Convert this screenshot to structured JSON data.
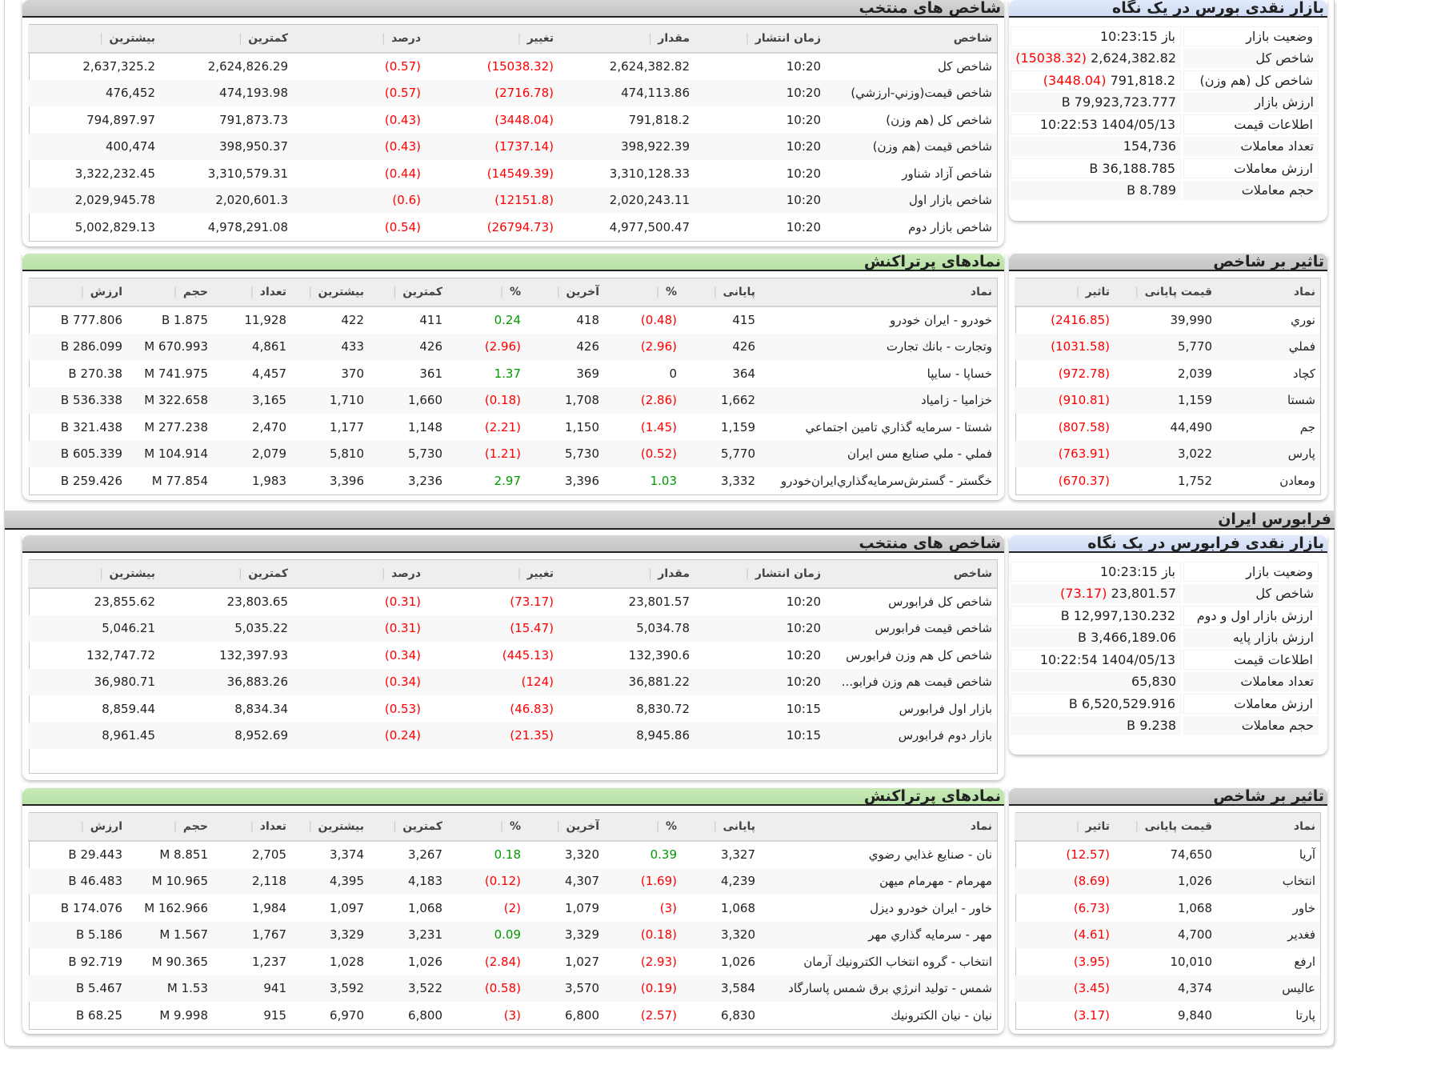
{
  "colors": {
    "negative": "#ff0000",
    "positive": "#009900",
    "indices_header": "#c8c8c8",
    "traded_header": "#c0e6ae",
    "overview_header": "#d8e2f6"
  },
  "bourse": {
    "indices": {
      "title": "شاخص های منتخب",
      "headers": [
        "شاخص",
        "زمان انتشار",
        "مقدار",
        "تغییر",
        "درصد",
        "کمترین",
        "بیشترین"
      ],
      "rows": [
        [
          "شاخص کل",
          "10:20",
          "2,624,382.82",
          "(15038.32)",
          "(0.57)",
          "2,624,826.29",
          "2,637,325.2"
        ],
        [
          "شاخص قيمت(وزني-ارزشي)",
          "10:20",
          "474,113.86",
          "(2716.78)",
          "(0.57)",
          "474,193.98",
          "476,452"
        ],
        [
          "شاخص کل (هم وزن)",
          "10:20",
          "791,818.2",
          "(3448.04)",
          "(0.43)",
          "791,873.73",
          "794,897.97"
        ],
        [
          "شاخص قیمت (هم وزن)",
          "10:20",
          "398,922.39",
          "(1737.14)",
          "(0.43)",
          "398,950.37",
          "400,474"
        ],
        [
          "شاخص آزاد شناور",
          "10:20",
          "3,310,128.33",
          "(14549.39)",
          "(0.44)",
          "3,310,579.31",
          "3,322,232.45"
        ],
        [
          "شاخص بازار اول",
          "10:20",
          "2,020,243.11",
          "(12151.8)",
          "(0.6)",
          "2,020,601.3",
          "2,029,945.78"
        ],
        [
          "شاخص بازار دوم",
          "10:20",
          "4,977,500.47",
          "(26794.73)",
          "(0.54)",
          "4,978,291.08",
          "5,002,829.13"
        ]
      ]
    },
    "overview": {
      "title": "بازار نقدی بورس در یک نگاه",
      "rows": [
        {
          "label": "وضعیت بازار",
          "value": "باز 10:23:15",
          "change": ""
        },
        {
          "label": "شاخص کل",
          "value": "2,624,382.82",
          "change": "(15038.32)"
        },
        {
          "label": "شاخص کل (هم وزن)",
          "value": "791,818.2",
          "change": "(3448.04)"
        },
        {
          "label": "ارزش بازار",
          "value": "79,923,723.777 B",
          "change": ""
        },
        {
          "label": "اطلاعات قیمت",
          "value": "1404/05/13 10:22:53",
          "change": ""
        },
        {
          "label": "تعداد معاملات",
          "value": "154,736",
          "change": ""
        },
        {
          "label": "ارزش معاملات",
          "value": "36,188.785 B",
          "change": ""
        },
        {
          "label": "حجم معاملات",
          "value": "8.789 B",
          "change": ""
        }
      ]
    },
    "traded": {
      "title": "نمادهای پرتراکنش",
      "headers": [
        "نماد",
        "پایانی",
        "%",
        "آخرین",
        "%",
        "کمترین",
        "بیشترین",
        "تعداد",
        "حجم",
        "ارزش"
      ],
      "rows": [
        [
          "خودرو - ايران‌ خودرو",
          "415",
          "(0.48)",
          "418",
          "0.24",
          "411",
          "422",
          "11,928",
          "1.875 B",
          "777.806 B"
        ],
        [
          "وتجارت - بانك تجارت",
          "426",
          "(2.96)",
          "426",
          "(2.96)",
          "426",
          "433",
          "4,861",
          "670.993 M",
          "286.099 B"
        ],
        [
          "خساپا - سايپا",
          "364",
          "0",
          "369",
          "1.37",
          "361",
          "370",
          "4,457",
          "741.975 M",
          "270.38 B"
        ],
        [
          "خزامیا - زامیاد",
          "1,662",
          "(2.86)",
          "1,708",
          "(0.18)",
          "1,660",
          "1,710",
          "3,165",
          "322.658 M",
          "536.338 B"
        ],
        [
          "شستا - سرمايه گذاري تامين اجتماعي",
          "1,159",
          "(1.45)",
          "1,150",
          "(2.21)",
          "1,148",
          "1,177",
          "2,470",
          "277.238 M",
          "321.438 B"
        ],
        [
          "فملي - ملي‌ صنايع‌ مس‌ ايران‌",
          "5,770",
          "(0.52)",
          "5,730",
          "(1.21)",
          "5,730",
          "5,810",
          "2,079",
          "104.914 M",
          "605.339 B"
        ],
        [
          "خگستر - گسترش‌سرمايه‌گذاري‌ايران‌خودرو",
          "3,332",
          "1.03",
          "3,396",
          "2.97",
          "3,236",
          "3,396",
          "1,983",
          "77.854 M",
          "259.426 B"
        ]
      ]
    },
    "impact": {
      "title": "تاثیر بر شاخص",
      "headers": [
        "نماد",
        "قیمت پایانی",
        "تاثیر"
      ],
      "rows": [
        [
          "نوري",
          "39,990",
          "(2416.85)"
        ],
        [
          "فملي",
          "5,770",
          "(1031.58)"
        ],
        [
          "كچاد",
          "2,039",
          "(972.78)"
        ],
        [
          "شستا",
          "1,159",
          "(910.81)"
        ],
        [
          "جم",
          "44,490",
          "(807.58)"
        ],
        [
          "پارس",
          "3,022",
          "(763.91)"
        ],
        [
          "ومعادن",
          "1,752",
          "(670.37)"
        ]
      ]
    }
  },
  "farabourse_band": "فرابورس ایران",
  "farabourse": {
    "indices": {
      "title": "شاخص های منتخب",
      "headers": [
        "شاخص",
        "زمان انتشار",
        "مقدار",
        "تغییر",
        "درصد",
        "کمترین",
        "بیشترین"
      ],
      "rows": [
        [
          "شاخص کل فرابورس",
          "10:20",
          "23,801.57",
          "(73.17)",
          "(0.31)",
          "23,803.65",
          "23,855.62"
        ],
        [
          "شاخص قیمت فرابورس",
          "10:20",
          "5,034.78",
          "(15.47)",
          "(0.31)",
          "5,035.22",
          "5,046.21"
        ],
        [
          "شاخص کل هم وزن فرابورس",
          "10:20",
          "132,390.6",
          "(445.13)",
          "(0.34)",
          "132,397.93",
          "132,747.72"
        ],
        [
          "شاخص قیمت هم وزن فرابو...",
          "10:20",
          "36,881.22",
          "(124)",
          "(0.34)",
          "36,883.26",
          "36,980.71"
        ],
        [
          "بازار اول فرابورس",
          "10:15",
          "8,830.72",
          "(46.83)",
          "(0.53)",
          "8,834.34",
          "8,859.44"
        ],
        [
          "بازار دوم فرابورس",
          "10:15",
          "8,945.86",
          "(21.35)",
          "(0.24)",
          "8,952.69",
          "8,961.45"
        ]
      ]
    },
    "overview": {
      "title": "بازار نقدی فرابورس در یک نگاه",
      "rows": [
        {
          "label": "وضعیت بازار",
          "value": "باز 10:23:15",
          "change": ""
        },
        {
          "label": "شاخص کل",
          "value": "23,801.57",
          "change": "(73.17)"
        },
        {
          "label": "ارزش بازار اول و دوم",
          "value": "12,997,130.232 B",
          "change": ""
        },
        {
          "label": "ارزش بازار پایه",
          "value": "3,466,189.06 B",
          "change": ""
        },
        {
          "label": "اطلاعات قیمت",
          "value": "1404/05/13 10:22:54",
          "change": ""
        },
        {
          "label": "تعداد معاملات",
          "value": "65,830",
          "change": ""
        },
        {
          "label": "ارزش معاملات",
          "value": "6,520,529.916 B",
          "change": ""
        },
        {
          "label": "حجم معاملات",
          "value": "9.238 B",
          "change": ""
        }
      ]
    },
    "traded": {
      "title": "نمادهای پرتراکنش",
      "headers": [
        "نماد",
        "پایانی",
        "%",
        "آخرین",
        "%",
        "کمترین",
        "بیشترین",
        "تعداد",
        "حجم",
        "ارزش"
      ],
      "rows": [
        [
          "نان - صنايع غذايي رضوي",
          "3,327",
          "0.39",
          "3,320",
          "0.18",
          "3,267",
          "3,374",
          "2,705",
          "8.851 M",
          "29.443 B"
        ],
        [
          "مهرمام - مهرمام ميهن",
          "4,239",
          "(1.69)",
          "4,307",
          "(0.12)",
          "4,183",
          "4,395",
          "2,118",
          "10.965 M",
          "46.483 B"
        ],
        [
          "خاور - ايران‌ خودرو ديزل‌",
          "1,068",
          "(3)",
          "1,079",
          "(2)",
          "1,068",
          "1,097",
          "1,984",
          "162.966 M",
          "174.076 B"
        ],
        [
          "مهر - سرمايه گذاري مهر",
          "3,320",
          "(0.18)",
          "3,329",
          "0.09",
          "3,231",
          "3,329",
          "1,767",
          "1.567 M",
          "5.186 B"
        ],
        [
          "انتخاب - گروه انتخاب الكترونيك آرمان",
          "1,026",
          "(2.93)",
          "1,027",
          "(2.84)",
          "1,026",
          "1,028",
          "1,237",
          "90.365 M",
          "92.719 B"
        ],
        [
          "شمس - توليد انرژي برق شمس پاسارگاد",
          "3,584",
          "(0.19)",
          "3,570",
          "(0.58)",
          "3,522",
          "3,592",
          "941",
          "1.53 M",
          "5.467 B"
        ],
        [
          "نيان - نيان الكترونيك",
          "6,830",
          "(2.57)",
          "6,800",
          "(3)",
          "6,800",
          "6,970",
          "915",
          "9.998 M",
          "68.25 B"
        ]
      ]
    },
    "impact": {
      "title": "تاثیر بر شاخص",
      "headers": [
        "نماد",
        "قیمت پایانی",
        "تاثیر"
      ],
      "rows": [
        [
          "آريا",
          "74,650",
          "(12.57)"
        ],
        [
          "انتخاب",
          "1,026",
          "(8.69)"
        ],
        [
          "خاور",
          "1,068",
          "(6.73)"
        ],
        [
          "فغدير",
          "4,700",
          "(4.61)"
        ],
        [
          "ارفع",
          "10,010",
          "(3.95)"
        ],
        [
          "عاليس",
          "4,374",
          "(3.45)"
        ],
        [
          "پارتا",
          "9,840",
          "(3.17)"
        ]
      ]
    }
  }
}
